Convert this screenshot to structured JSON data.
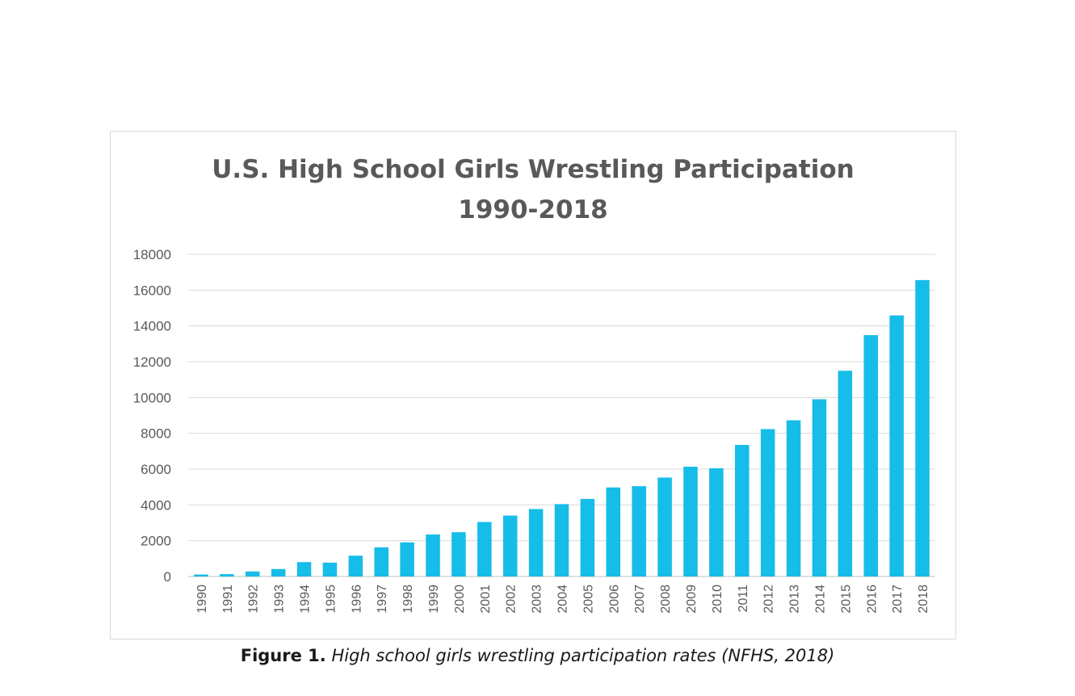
{
  "chart_data": {
    "type": "bar",
    "title": "U.S. High School Girls Wrestling Participation",
    "subtitle": "1990-2018",
    "xlabel": "",
    "ylabel": "",
    "ylim": [
      0,
      18000
    ],
    "yticks": [
      "0",
      "2000",
      "4000",
      "6000",
      "8000",
      "10000",
      "12000",
      "14000",
      "16000",
      "18000"
    ],
    "grid": true,
    "legend": "none",
    "bar_color": "#16bde8",
    "categories": [
      "1990",
      "1991",
      "1992",
      "1993",
      "1994",
      "1995",
      "1996",
      "1997",
      "1998",
      "1999",
      "2000",
      "2001",
      "2002",
      "2003",
      "2004",
      "2005",
      "2006",
      "2007",
      "2008",
      "2009",
      "2010",
      "2011",
      "2012",
      "2013",
      "2014",
      "2015",
      "2016",
      "2017",
      "2018"
    ],
    "values": [
      112,
      132,
      282,
      418,
      804,
      775,
      1164,
      1629,
      1907,
      2351,
      2474,
      3045,
      3405,
      3769,
      4044,
      4334,
      4975,
      5048,
      5527,
      6134,
      6046,
      7351,
      8235,
      8727,
      9904,
      11496,
      13486,
      14587,
      16562
    ]
  },
  "caption": {
    "label": "Figure 1.",
    "text": "High school girls wrestling participation rates (NFHS, 2018)"
  }
}
